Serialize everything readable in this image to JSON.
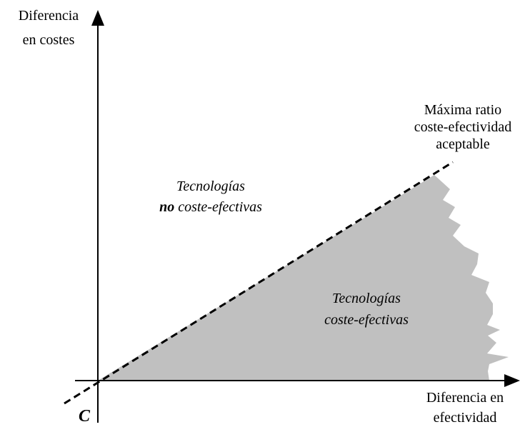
{
  "y_axis": {
    "label": [
      "Diferencia",
      "en costes"
    ]
  },
  "x_axis": {
    "label": [
      "Diferencia en",
      "efectividad"
    ]
  },
  "origin": "C",
  "threshold_line": {
    "label": [
      "Máxima ratio",
      "coste-efectividad",
      "aceptable"
    ]
  },
  "regions": {
    "not_cost_effective": {
      "line1": "Tecnologías",
      "emphasis": "no",
      "line2": "coste-efectivas"
    },
    "cost_effective": {
      "line1": "Tecnologías",
      "line2": "coste-efectivas"
    }
  }
}
